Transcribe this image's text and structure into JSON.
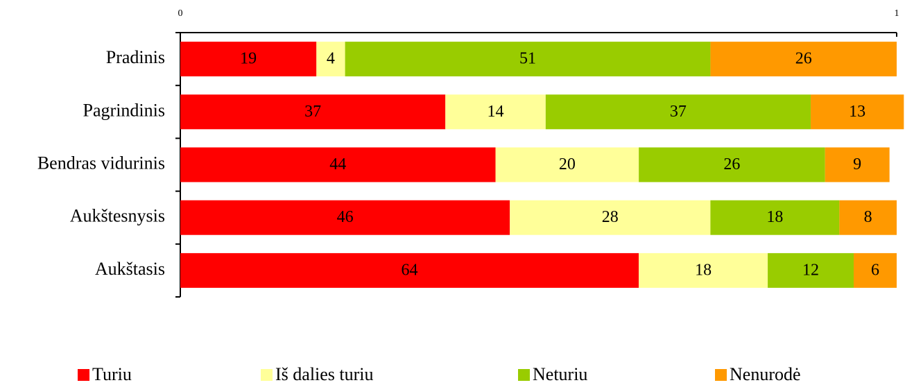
{
  "chart_data": {
    "type": "stacked-bar-horizontal",
    "categories": [
      "Pradinis",
      "Pagrindinis",
      "Bendras vidurinis",
      "Aukštesnysis",
      "Aukštasis"
    ],
    "series": [
      {
        "name": "Turiu",
        "color": "#ff0000",
        "values": [
          0.19,
          0.37,
          0.44,
          0.46,
          0.64
        ],
        "value_labels": [
          "19",
          "37",
          "44",
          "46",
          "64"
        ]
      },
      {
        "name": "Iš dalies turiu",
        "color": "#ffff99",
        "values": [
          0.04,
          0.14,
          0.2,
          0.28,
          0.18
        ],
        "value_labels": [
          "4",
          "14",
          "20",
          "28",
          "18"
        ]
      },
      {
        "name": "Neturiu",
        "color": "#99cc00",
        "values": [
          0.51,
          0.37,
          0.26,
          0.18,
          0.12
        ],
        "value_labels": [
          "51",
          "37",
          "26",
          "18",
          "12"
        ]
      },
      {
        "name": "Nenurodė",
        "color": "#ff9900",
        "values": [
          0.26,
          0.13,
          0.09,
          0.08,
          0.06
        ],
        "value_labels": [
          "26",
          "13",
          "9",
          "8",
          "6"
        ]
      }
    ],
    "xlim": [
      0,
      1
    ],
    "xticks": [
      0,
      1
    ],
    "legend": "bottom"
  }
}
